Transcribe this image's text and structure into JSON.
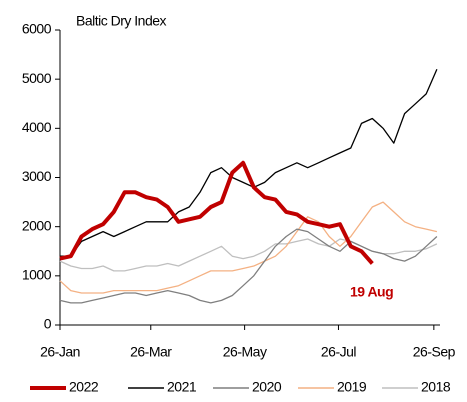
{
  "chart_data": {
    "type": "line",
    "title": "Baltic Dry Index",
    "annotation": "19 Aug",
    "x": [
      0,
      7,
      14,
      21,
      28,
      35,
      42,
      49,
      56,
      63,
      70,
      77,
      84,
      91,
      98,
      105,
      112,
      119,
      126,
      133,
      140,
      147,
      154,
      161,
      168,
      175,
      182,
      189,
      196,
      203,
      210,
      217,
      224,
      231,
      238,
      245
    ],
    "xlim": [
      0,
      247
    ],
    "xticks": [
      {
        "value": 0,
        "label": "26-Jan"
      },
      {
        "value": 59,
        "label": "26-Mar"
      },
      {
        "value": 120,
        "label": "26-May"
      },
      {
        "value": 181,
        "label": "26-Jul"
      },
      {
        "value": 243,
        "label": "26-Sep"
      }
    ],
    "ylim": [
      0,
      6000
    ],
    "yticks": [
      0,
      1000,
      2000,
      3000,
      4000,
      5000,
      6000
    ],
    "grid": false,
    "legend": "bottom",
    "series": [
      {
        "name": "2022",
        "color": "#c00000",
        "values": [
          1350,
          1400,
          1800,
          1950,
          2050,
          2300,
          2700,
          2700,
          2600,
          2550,
          2400,
          2100,
          2150,
          2200,
          2400,
          2500,
          3100,
          3300,
          2800,
          2600,
          2550,
          2300,
          2250,
          2100,
          2050,
          2000,
          2050,
          1600,
          1500,
          1250,
          null,
          null,
          null,
          null,
          null,
          null
        ]
      },
      {
        "name": "2021",
        "color": "#000000",
        "values": [
          1400,
          1400,
          1700,
          1800,
          1900,
          1800,
          1900,
          2000,
          2100,
          2100,
          2100,
          2300,
          2400,
          2700,
          3100,
          3200,
          3000,
          2900,
          2800,
          2900,
          3100,
          3200,
          3300,
          3200,
          3300,
          3400,
          3500,
          3600,
          4100,
          4200,
          4000,
          3700,
          4300,
          4500,
          4700,
          5200
        ]
      },
      {
        "name": "2020",
        "color": "#7f7f7f",
        "values": [
          500,
          450,
          450,
          500,
          550,
          600,
          650,
          650,
          600,
          650,
          700,
          650,
          600,
          500,
          450,
          500,
          600,
          800,
          1000,
          1300,
          1600,
          1800,
          1950,
          1900,
          1750,
          1600,
          1500,
          1700,
          1600,
          1500,
          1450,
          1350,
          1300,
          1400,
          1600,
          1800
        ]
      },
      {
        "name": "2019",
        "color": "#f4b183",
        "values": [
          900,
          700,
          650,
          650,
          650,
          700,
          700,
          700,
          700,
          700,
          750,
          800,
          900,
          1000,
          1100,
          1100,
          1100,
          1150,
          1200,
          1300,
          1400,
          1600,
          1900,
          2200,
          2100,
          1800,
          1600,
          1800,
          2100,
          2400,
          2500,
          2300,
          2100,
          2000,
          1950,
          1900
        ]
      },
      {
        "name": "2018",
        "color": "#bfbfbf",
        "values": [
          1300,
          1200,
          1150,
          1150,
          1200,
          1100,
          1100,
          1150,
          1200,
          1200,
          1250,
          1200,
          1300,
          1400,
          1500,
          1600,
          1400,
          1350,
          1400,
          1500,
          1650,
          1650,
          1700,
          1750,
          1650,
          1600,
          1750,
          1700,
          1600,
          1500,
          1450,
          1450,
          1500,
          1500,
          1550,
          1650
        ]
      }
    ]
  }
}
